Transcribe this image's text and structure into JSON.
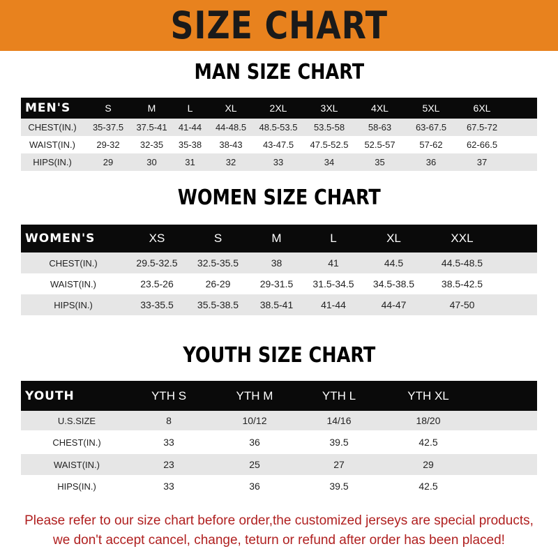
{
  "banner": {
    "title": "SIZE CHART",
    "color": "#e8821e"
  },
  "men": {
    "title": "MAN SIZE CHART",
    "header": [
      "MEN'S",
      "S",
      "M",
      "L",
      "XL",
      "2XL",
      "3XL",
      "4XL",
      "5XL",
      "6XL"
    ],
    "rows": [
      [
        "CHEST(IN.)",
        "35-37.5",
        "37.5-41",
        "41-44",
        "44-48.5",
        "48.5-53.5",
        "53.5-58",
        "58-63",
        "63-67.5",
        "67.5-72"
      ],
      [
        "WAIST(IN.)",
        "29-32",
        "32-35",
        "35-38",
        "38-43",
        "43-47.5",
        "47.5-52.5",
        "52.5-57",
        "57-62",
        "62-66.5"
      ],
      [
        "HIPS(IN.)",
        "29",
        "30",
        "31",
        "32",
        "33",
        "34",
        "35",
        "36",
        "37"
      ]
    ]
  },
  "women": {
    "title": "WOMEN SIZE CHART",
    "header": [
      "WOMEN'S",
      "XS",
      "S",
      "M",
      "L",
      "XL",
      "XXL"
    ],
    "rows": [
      [
        "CHEST(IN.)",
        "29.5-32.5",
        "32.5-35.5",
        "38",
        "41",
        "44.5",
        "44.5-48.5"
      ],
      [
        "WAIST(IN.)",
        "23.5-26",
        "26-29",
        "29-31.5",
        "31.5-34.5",
        "34.5-38.5",
        "38.5-42.5"
      ],
      [
        "HIPS(IN.)",
        "33-35.5",
        "35.5-38.5",
        "38.5-41",
        "41-44",
        "44-47",
        "47-50"
      ]
    ]
  },
  "youth": {
    "title": "YOUTH SIZE CHART",
    "header": [
      "YOUTH",
      "YTH S",
      "YTH M",
      "YTH L",
      "YTH XL"
    ],
    "rows": [
      [
        "U.S.SIZE",
        "8",
        "10/12",
        "14/16",
        "18/20"
      ],
      [
        "CHEST(IN.)",
        "33",
        "36",
        "39.5",
        "42.5"
      ],
      [
        "WAIST(IN.)",
        "23",
        "25",
        "27",
        "29"
      ],
      [
        "HIPS(IN.)",
        "33",
        "36",
        "39.5",
        "42.5"
      ]
    ]
  },
  "note": {
    "line1": "Please refer to our size chart before order,the customized jerseys are special products,",
    "line2": "we don't accept cancel, change, teturn or refund after order has been placed!"
  }
}
